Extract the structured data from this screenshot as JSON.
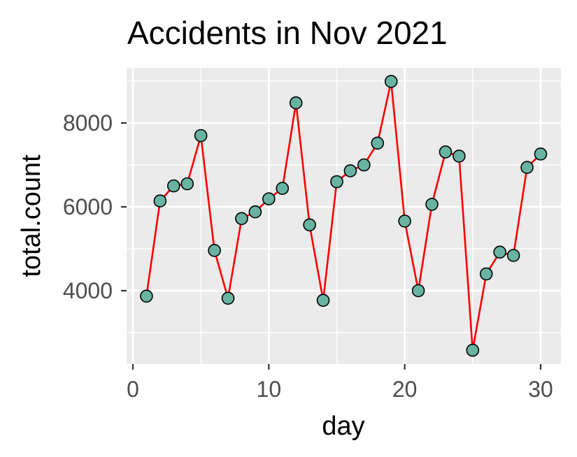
{
  "chart_data": {
    "type": "line",
    "title": "Accidents in Nov 2021",
    "xlabel": "day",
    "ylabel": "total.count",
    "xlim": [
      0,
      31
    ],
    "ylim": [
      2300,
      9330
    ],
    "x_ticks": [
      0,
      10,
      20,
      30
    ],
    "y_ticks": [
      4000,
      6000,
      8000
    ],
    "grid": true,
    "line_color": "#ff0000",
    "point_fill": "#69b3a2",
    "panel_background": "#ebebeb",
    "series": [
      {
        "x": [
          1,
          2,
          3,
          4,
          5,
          6,
          7,
          8,
          9,
          10,
          11,
          12,
          13,
          14,
          15,
          16,
          17,
          18,
          19,
          20,
          21,
          22,
          23,
          24,
          25,
          26,
          27,
          28,
          29,
          30
        ],
        "values": [
          3870,
          6140,
          6500,
          6550,
          7700,
          4960,
          3820,
          5720,
          5880,
          6190,
          6440,
          8480,
          5570,
          3770,
          6600,
          6860,
          7000,
          7520,
          8990,
          5660,
          4000,
          6060,
          7310,
          7210,
          2580,
          4400,
          4920,
          4840,
          6940,
          7260
        ]
      }
    ]
  }
}
